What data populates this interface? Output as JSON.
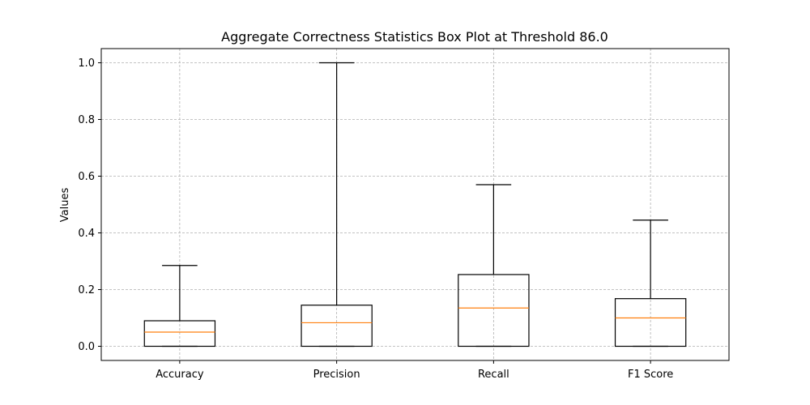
{
  "chart_data": {
    "type": "box",
    "title": "Aggregate Correctness Statistics Box Plot at Threshold 86.0",
    "xlabel": "",
    "ylabel": "Values",
    "ylim": [
      -0.05,
      1.05
    ],
    "yticks": [
      0.0,
      0.2,
      0.4,
      0.6,
      0.8,
      1.0
    ],
    "ytick_labels": [
      "0.0",
      "0.2",
      "0.4",
      "0.6",
      "0.8",
      "1.0"
    ],
    "grid": true,
    "categories": [
      "Accuracy",
      "Precision",
      "Recall",
      "F1 Score"
    ],
    "boxes": [
      {
        "whisker_low": 0.0,
        "q1": 0.0,
        "median": 0.05,
        "q3": 0.09,
        "whisker_high": 0.285
      },
      {
        "whisker_low": 0.0,
        "q1": 0.0,
        "median": 0.083,
        "q3": 0.145,
        "whisker_high": 1.0
      },
      {
        "whisker_low": 0.0,
        "q1": 0.0,
        "median": 0.135,
        "q3": 0.253,
        "whisker_high": 0.57
      },
      {
        "whisker_low": 0.0,
        "q1": 0.0,
        "median": 0.1,
        "q3": 0.168,
        "whisker_high": 0.445
      }
    ],
    "colors": {
      "box": "#000000",
      "median": "#ff7f0e",
      "grid": "#b0b0b0"
    }
  }
}
